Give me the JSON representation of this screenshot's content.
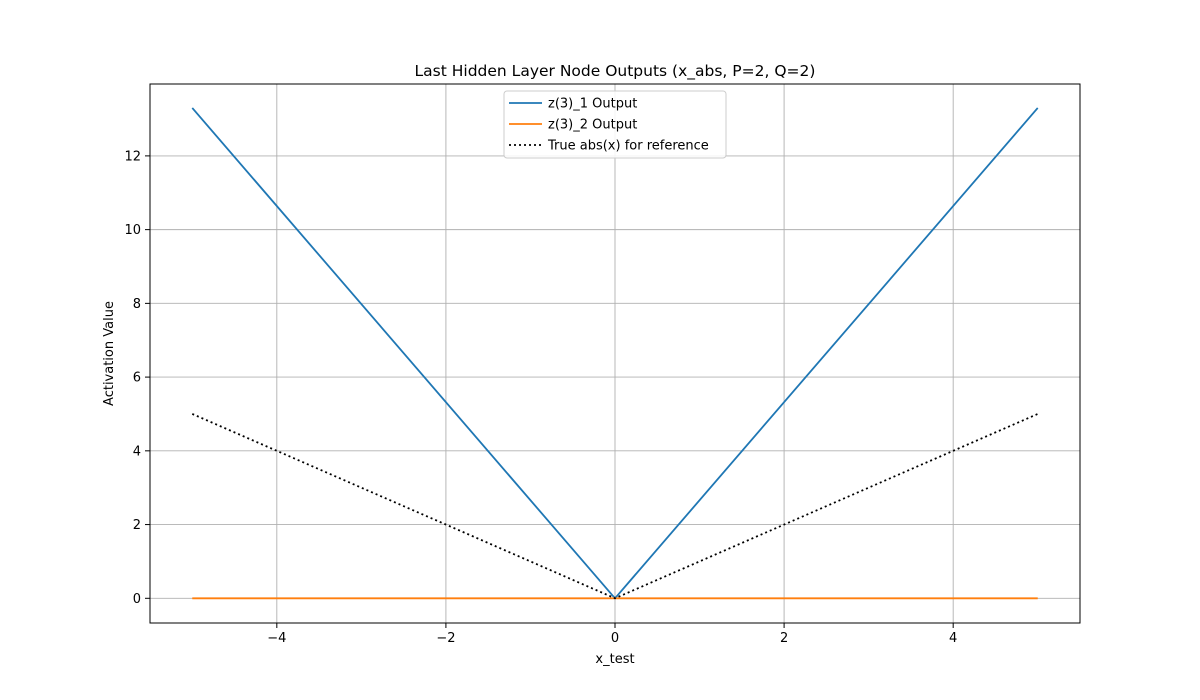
{
  "chart_data": {
    "type": "line",
    "title": "Last Hidden Layer Node Outputs (x_abs, P=2, Q=2)",
    "xlabel": "x_test",
    "ylabel": "Activation Value",
    "xlim": [
      -5.5,
      5.5
    ],
    "ylim": [
      -0.67,
      13.95
    ],
    "xticks": [
      -4,
      -2,
      0,
      2,
      4
    ],
    "yticks": [
      0,
      2,
      4,
      6,
      8,
      10,
      12
    ],
    "grid": true,
    "legend_position": "top-center",
    "series": [
      {
        "name": "z(3)_1 Output",
        "color": "#1f77b4",
        "style": "solid",
        "x": [
          -5,
          0,
          5
        ],
        "y": [
          13.3,
          0,
          13.3
        ]
      },
      {
        "name": "z(3)_2 Output",
        "color": "#ff7f0e",
        "style": "solid",
        "x": [
          -5,
          0,
          5
        ],
        "y": [
          0,
          0,
          0
        ]
      },
      {
        "name": "True abs(x) for reference",
        "color": "#000000",
        "style": "dotted",
        "x": [
          -5,
          0,
          5
        ],
        "y": [
          5,
          0,
          5
        ]
      }
    ]
  }
}
